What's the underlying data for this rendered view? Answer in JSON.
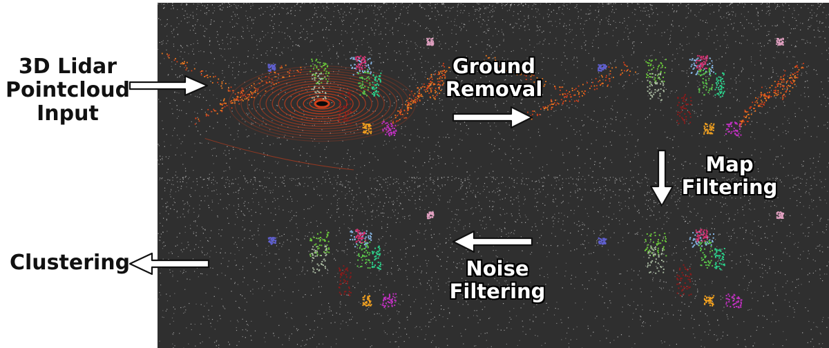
{
  "labels": {
    "input": [
      "3D Lidar",
      "Pointcloud",
      "Input"
    ],
    "ground_removal": [
      "Ground",
      "Removal"
    ],
    "map_filtering": [
      "Map",
      "Filtering"
    ],
    "noise_filtering": [
      "Noise",
      "Filtering"
    ],
    "clustering": "Clustering"
  },
  "colors": {
    "background": "#2f2f2f",
    "ground_points": "#d4401a",
    "sparse_points": "#cfcfcf",
    "arrow_fill": "#ffffff",
    "arrow_stroke": "#111111"
  },
  "panels": [
    {
      "id": "raw-input",
      "show_ground_rings": true,
      "show_ground_structures": true
    },
    {
      "id": "ground-removed",
      "show_ground_rings": false,
      "show_ground_structures": true
    },
    {
      "id": "clustered",
      "show_ground_rings": false,
      "show_ground_structures": false
    },
    {
      "id": "map-filtered",
      "show_ground_rings": false,
      "show_ground_structures": false
    }
  ]
}
